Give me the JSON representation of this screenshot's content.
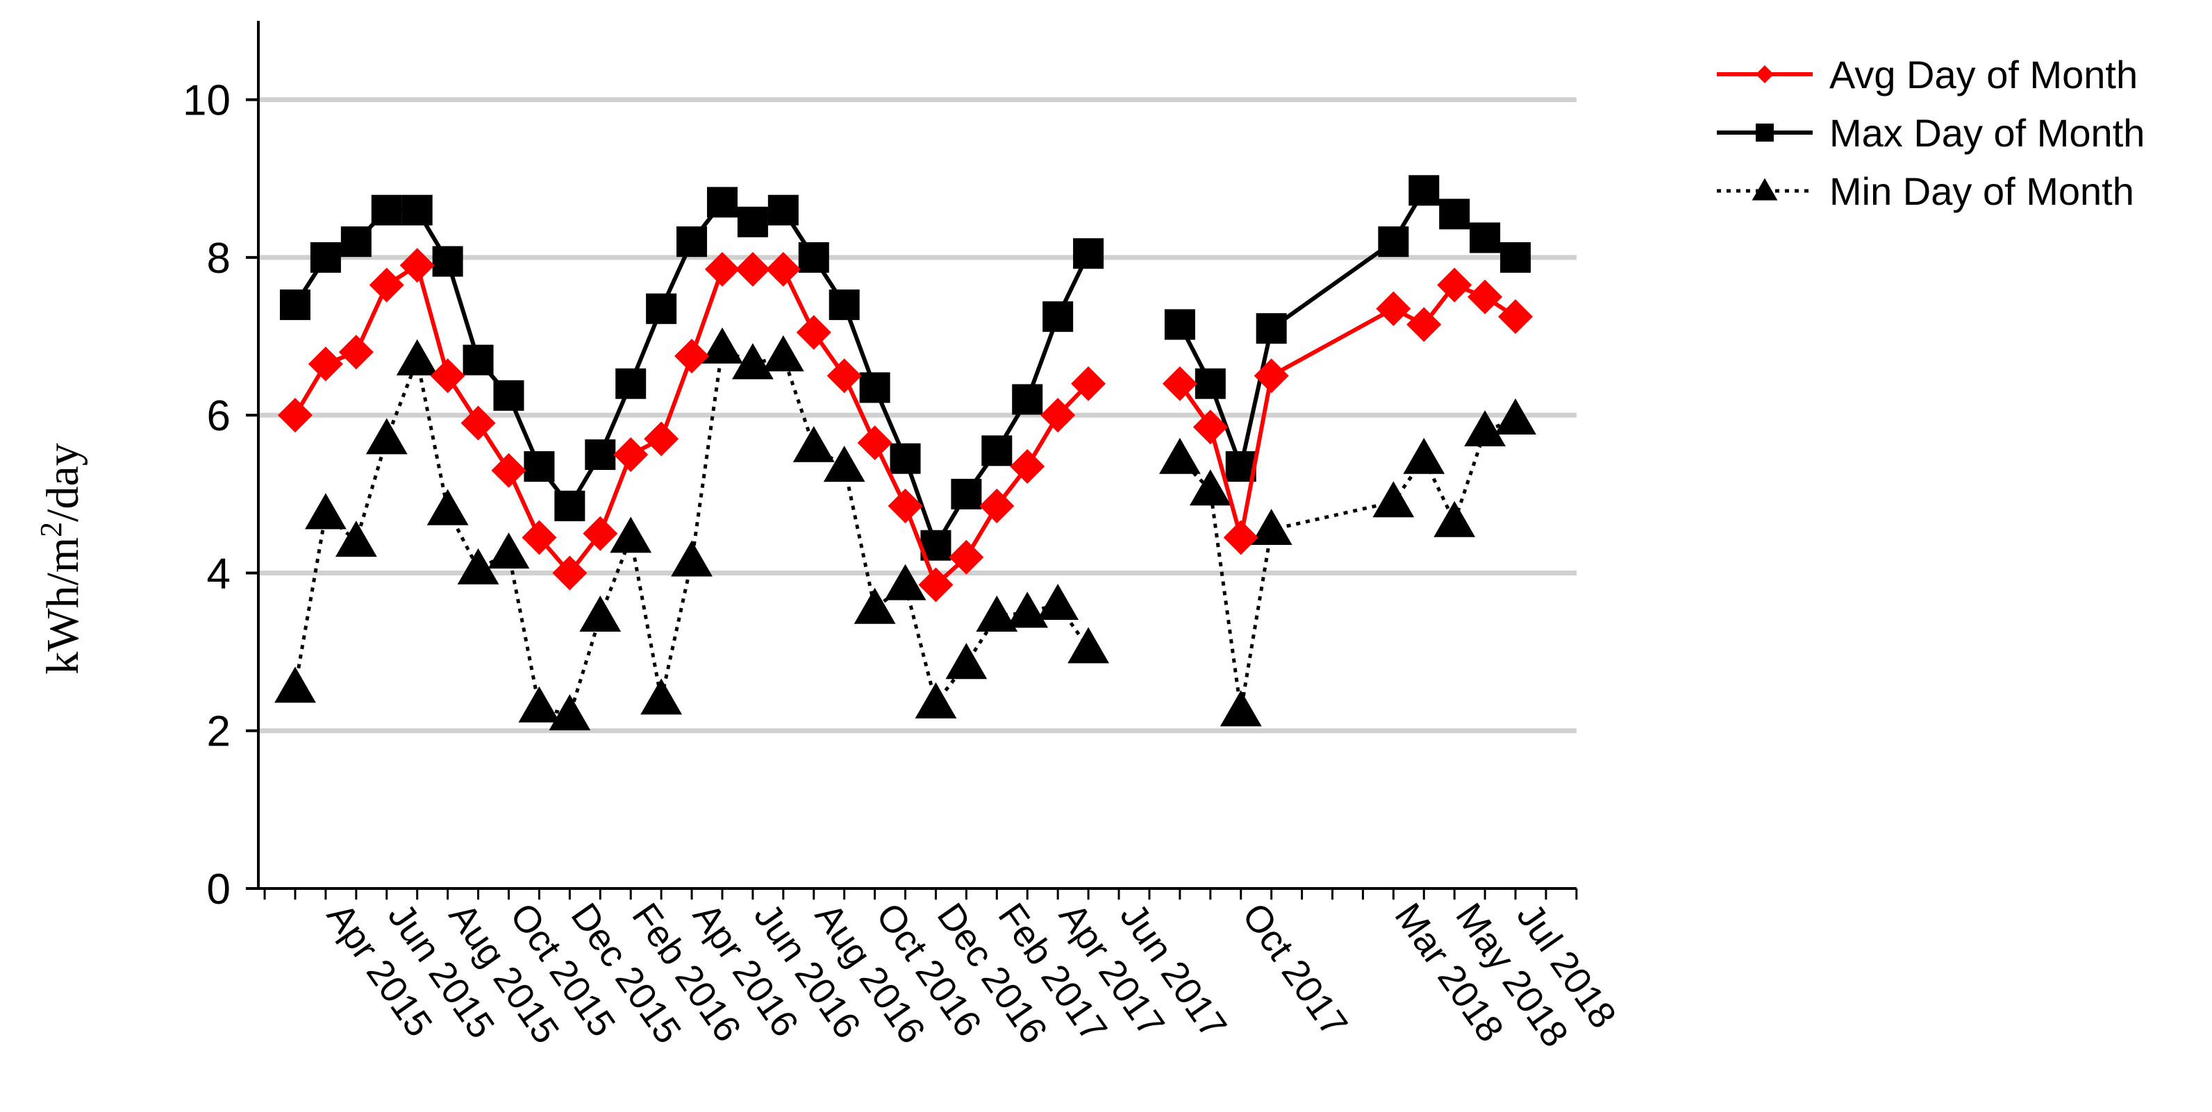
{
  "chart_data": {
    "type": "line",
    "title": "",
    "xlabel": "",
    "ylabel": "kWh/m²/day",
    "ylabel_parts": {
      "before": "kWh/m",
      "sup": "2",
      "after": "/day"
    },
    "ylim": [
      0,
      11
    ],
    "yticks": [
      0,
      2,
      4,
      6,
      8,
      10
    ],
    "grid": "horizontal",
    "legend_position": "top-right",
    "x_tick_labels": [
      "Apr 2015",
      "Jun 2015",
      "Aug 2015",
      "Oct 2015",
      "Dec 2015",
      "Feb 2016",
      "Apr 2016",
      "Jun 2016",
      "Aug 2016",
      "Oct 2016",
      "Dec 2016",
      "Feb 2017",
      "Apr 2017",
      "Jun 2017",
      "Oct 2017",
      "Mar 2018",
      "May 2018",
      "Jul 2018"
    ],
    "x": [
      "Mar 2015",
      "Apr 2015",
      "May 2015",
      "Jun 2015",
      "Jul 2015",
      "Aug 2015",
      "Sep 2015",
      "Oct 2015",
      "Nov 2015",
      "Dec 2015",
      "Jan 2016",
      "Feb 2016",
      "Mar 2016",
      "Apr 2016",
      "May 2016",
      "Jun 2016",
      "Jul 2016",
      "Aug 2016",
      "Sep 2016",
      "Oct 2016",
      "Nov 2016",
      "Dec 2016",
      "Jan 2017",
      "Feb 2017",
      "Mar 2017",
      "Apr 2017",
      "May 2017",
      "Jun 2017",
      "Aug 2017",
      "Sep 2017",
      "Oct 2017",
      "Nov 2017",
      "Mar 2018",
      "Apr 2018",
      "May 2018",
      "Jun 2018",
      "Jul 2018",
      "Aug 2018"
    ],
    "series": [
      {
        "name": "Avg Day of Month",
        "color": "#ff0000",
        "marker": "diamond",
        "line": "solid",
        "values": [
          6.0,
          6.65,
          6.8,
          7.65,
          7.9,
          6.5,
          5.9,
          5.3,
          4.45,
          4.0,
          4.5,
          5.5,
          5.7,
          6.75,
          7.85,
          7.85,
          7.85,
          7.05,
          6.5,
          5.65,
          4.85,
          3.85,
          4.2,
          4.85,
          5.35,
          6.0,
          6.4,
          null,
          6.4,
          5.85,
          4.45,
          6.5,
          7.35,
          7.15,
          7.65,
          7.5,
          7.25,
          null
        ]
      },
      {
        "name": "Max Day of Month",
        "color": "#000000",
        "marker": "square",
        "line": "solid",
        "values": [
          7.4,
          8.0,
          8.2,
          8.6,
          8.6,
          7.95,
          6.7,
          6.25,
          5.35,
          4.85,
          5.5,
          6.4,
          7.35,
          8.2,
          8.7,
          8.45,
          8.6,
          8.0,
          7.4,
          6.35,
          5.45,
          4.35,
          5.0,
          5.55,
          6.2,
          7.25,
          8.05,
          null,
          7.15,
          6.4,
          5.35,
          7.1,
          8.2,
          8.85,
          8.55,
          8.25,
          8.0,
          null
        ]
      },
      {
        "name": "Min Day of Month",
        "color": "#000000",
        "marker": "triangle",
        "line": "dotted",
        "values": [
          2.55,
          4.75,
          4.4,
          5.7,
          6.7,
          4.8,
          4.05,
          4.25,
          2.3,
          2.2,
          3.45,
          4.45,
          2.4,
          4.15,
          6.85,
          6.65,
          6.75,
          5.6,
          5.35,
          3.55,
          3.85,
          2.35,
          2.85,
          3.45,
          3.5,
          3.6,
          3.05,
          null,
          5.45,
          5.05,
          2.25,
          4.55,
          4.9,
          5.45,
          4.65,
          5.8,
          5.95,
          null
        ]
      }
    ]
  }
}
